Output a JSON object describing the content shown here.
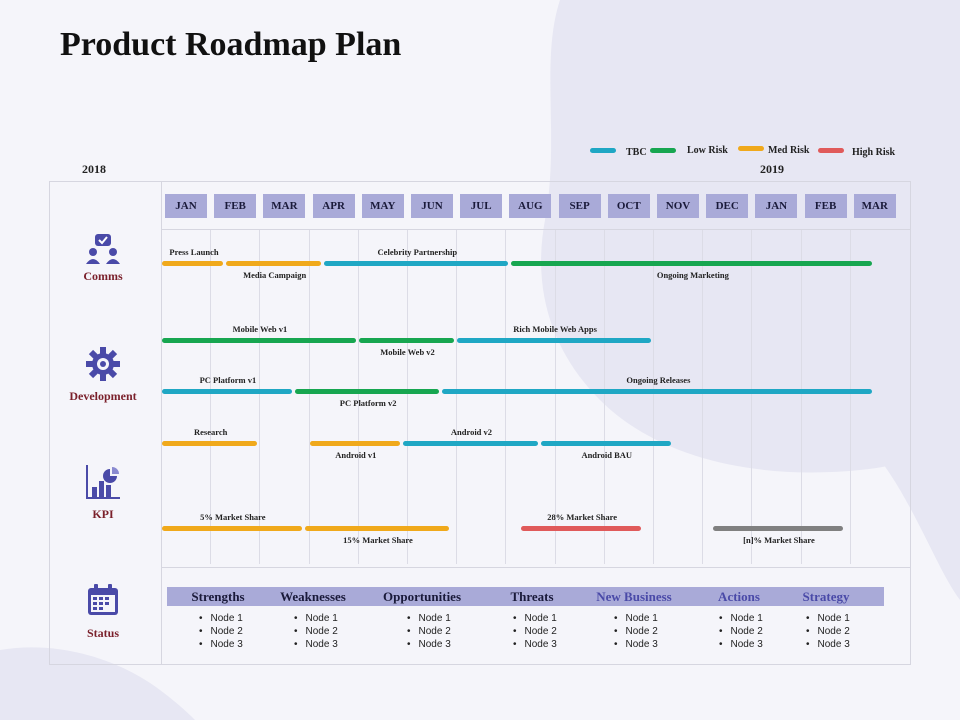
{
  "title": "Product Roadmap Plan",
  "years": {
    "start": "2018",
    "end": "2019"
  },
  "legend": [
    {
      "label": "TBC",
      "color": "#1fa7c4"
    },
    {
      "label": "Low Risk",
      "color": "#17a650"
    },
    {
      "label": "Med Risk",
      "color": "#f0a91b"
    },
    {
      "label": "High Risk",
      "color": "#e05a5a"
    }
  ],
  "months": [
    "JAN",
    "FEB",
    "MAR",
    "APR",
    "MAY",
    "JUN",
    "JUL",
    "AUG",
    "SEP",
    "OCT",
    "NOV",
    "DEC",
    "JAN",
    "FEB",
    "MAR"
  ],
  "rows": [
    {
      "label": "Comms",
      "icon": "team-icon"
    },
    {
      "label": "Development",
      "icon": "gear-icon"
    },
    {
      "label": "KPI",
      "icon": "chart-icon"
    },
    {
      "label": "Status",
      "icon": "calendar-icon"
    }
  ],
  "bars": [
    {
      "label": "Press Launch",
      "start": 0,
      "end": 1.3,
      "lane": 0,
      "risk": "Med Risk",
      "label_pos": "above"
    },
    {
      "label": "Media Campaign",
      "start": 1.3,
      "end": 3.3,
      "lane": 0,
      "risk": "Med Risk",
      "label_pos": "below"
    },
    {
      "label": "Celebrity Partnership",
      "start": 3.3,
      "end": 7.1,
      "lane": 0,
      "risk": "TBC",
      "label_pos": "above"
    },
    {
      "label": "Ongoing Marketing",
      "start": 7.1,
      "end": 14.5,
      "lane": 0,
      "risk": "Low Risk",
      "label_pos": "below"
    },
    {
      "label": "Mobile Web v1",
      "start": 0,
      "end": 4.0,
      "lane": 1,
      "risk": "Low Risk",
      "label_pos": "above"
    },
    {
      "label": "Mobile Web v2",
      "start": 4.0,
      "end": 6.0,
      "lane": 1,
      "risk": "Low Risk",
      "label_pos": "below"
    },
    {
      "label": "Rich Mobile Web Apps",
      "start": 6.0,
      "end": 10.0,
      "lane": 1,
      "risk": "TBC",
      "label_pos": "above"
    },
    {
      "label": "PC Platform v1",
      "start": 0,
      "end": 2.7,
      "lane": 2,
      "risk": "TBC",
      "label_pos": "above"
    },
    {
      "label": "PC Platform v2",
      "start": 2.7,
      "end": 5.7,
      "lane": 2,
      "risk": "Low Risk",
      "label_pos": "below"
    },
    {
      "label": "Ongoing Releases",
      "start": 5.7,
      "end": 14.5,
      "lane": 2,
      "risk": "TBC",
      "label_pos": "above"
    },
    {
      "label": "Research",
      "start": 0,
      "end": 2.0,
      "lane": 3,
      "risk": "Med Risk",
      "label_pos": "above"
    },
    {
      "label": "Android v1",
      "start": 3.0,
      "end": 4.9,
      "lane": 3,
      "risk": "Med Risk",
      "label_pos": "below"
    },
    {
      "label": "Android v2",
      "start": 4.9,
      "end": 7.7,
      "lane": 3,
      "risk": "TBC",
      "label_pos": "above"
    },
    {
      "label": "Android BAU",
      "start": 7.7,
      "end": 10.4,
      "lane": 3,
      "risk": "TBC",
      "label_pos": "below"
    },
    {
      "label": "5% Market Share",
      "start": 0,
      "end": 2.9,
      "lane": 4,
      "risk": "Med Risk",
      "label_pos": "above"
    },
    {
      "label": "15% Market Share",
      "start": 2.9,
      "end": 5.9,
      "lane": 4,
      "risk": "Med Risk",
      "label_pos": "below"
    },
    {
      "label": "28% Market Share",
      "start": 7.3,
      "end": 9.8,
      "lane": 4,
      "risk": "High Risk",
      "label_pos": "above"
    },
    {
      "label": "[n]% Market Share",
      "start": 11.2,
      "end": 13.9,
      "lane": 4,
      "risk": "Grey",
      "label_pos": "below"
    }
  ],
  "risk_colors": {
    "TBC": "#1fa7c4",
    "Low Risk": "#17a650",
    "Med Risk": "#f0a91b",
    "High Risk": "#e05a5a",
    "Grey": "#808080"
  },
  "status_columns": [
    {
      "heading": "Strengths",
      "nodes": [
        "Node 1",
        "Node 2",
        "Node 3"
      ],
      "color": "#1a1a3a"
    },
    {
      "heading": "Weaknesses",
      "nodes": [
        "Node 1",
        "Node 2",
        "Node 3"
      ],
      "color": "#1a1a3a"
    },
    {
      "heading": "Opportunities",
      "nodes": [
        "Node 1",
        "Node 2",
        "Node 3"
      ],
      "color": "#1a1a3a"
    },
    {
      "heading": "Threats",
      "nodes": [
        "Node 1",
        "Node 2",
        "Node 3"
      ],
      "color": "#1a1a3a"
    },
    {
      "heading": "New Business",
      "nodes": [
        "Node 1",
        "Node 2",
        "Node 3"
      ],
      "color": "#4a4aa8"
    },
    {
      "heading": "Actions",
      "nodes": [
        "Node 1",
        "Node 2",
        "Node 3"
      ],
      "color": "#4a4aa8"
    },
    {
      "heading": "Strategy",
      "nodes": [
        "Node 1",
        "Node 2",
        "Node 3"
      ],
      "color": "#4a4aa8"
    }
  ]
}
